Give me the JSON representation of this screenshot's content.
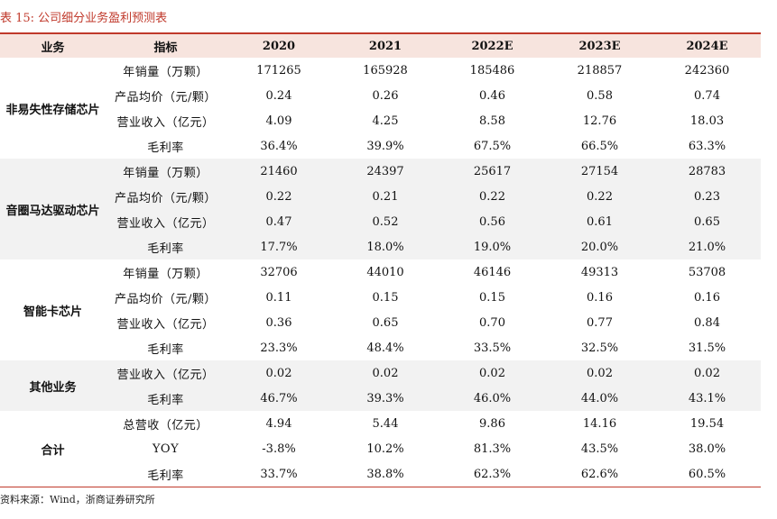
{
  "caption": "表 15:  公司细分业务盈利预测表",
  "header": {
    "business": "业务",
    "indicator": "指标",
    "years": [
      "2020",
      "2021",
      "2022E",
      "2023E",
      "2024E"
    ]
  },
  "sections": [
    {
      "name": "非易失性存储芯片",
      "rows": [
        {
          "indicator": "年销量（万颗）",
          "values": [
            "171265",
            "165928",
            "185486",
            "218857",
            "242360"
          ]
        },
        {
          "indicator": "产品均价（元/颗）",
          "values": [
            "0.24",
            "0.26",
            "0.46",
            "0.58",
            "0.74"
          ]
        },
        {
          "indicator": "营业收入（亿元）",
          "values": [
            "4.09",
            "4.25",
            "8.58",
            "12.76",
            "18.03"
          ]
        },
        {
          "indicator": "毛利率",
          "values": [
            "36.4%",
            "39.9%",
            "67.5%",
            "66.5%",
            "63.3%"
          ]
        }
      ]
    },
    {
      "name": "音圈马达驱动芯片",
      "rows": [
        {
          "indicator": "年销量（万颗）",
          "values": [
            "21460",
            "24397",
            "25617",
            "27154",
            "28783"
          ]
        },
        {
          "indicator": "产品均价（元/颗）",
          "values": [
            "0.22",
            "0.21",
            "0.22",
            "0.22",
            "0.23"
          ]
        },
        {
          "indicator": "营业收入（亿元）",
          "values": [
            "0.47",
            "0.52",
            "0.56",
            "0.61",
            "0.65"
          ]
        },
        {
          "indicator": "毛利率",
          "values": [
            "17.7%",
            "18.0%",
            "19.0%",
            "20.0%",
            "21.0%"
          ]
        }
      ]
    },
    {
      "name": "智能卡芯片",
      "rows": [
        {
          "indicator": "年销量（万颗）",
          "values": [
            "32706",
            "44010",
            "46146",
            "49313",
            "53708"
          ]
        },
        {
          "indicator": "产品均价（元/颗）",
          "values": [
            "0.11",
            "0.15",
            "0.15",
            "0.16",
            "0.16"
          ]
        },
        {
          "indicator": "营业收入（亿元）",
          "values": [
            "0.36",
            "0.65",
            "0.70",
            "0.77",
            "0.84"
          ]
        },
        {
          "indicator": "毛利率",
          "values": [
            "23.3%",
            "48.4%",
            "33.5%",
            "32.5%",
            "31.5%"
          ]
        }
      ]
    },
    {
      "name": "其他业务",
      "rows": [
        {
          "indicator": "营业收入（亿元）",
          "values": [
            "0.02",
            "0.02",
            "0.02",
            "0.02",
            "0.02"
          ]
        },
        {
          "indicator": "毛利率",
          "values": [
            "46.7%",
            "39.3%",
            "46.0%",
            "44.0%",
            "43.1%"
          ]
        }
      ]
    },
    {
      "name": "合计",
      "rows": [
        {
          "indicator": "总营收（亿元）",
          "values": [
            "4.94",
            "5.44",
            "9.86",
            "14.16",
            "19.54"
          ]
        },
        {
          "indicator": "YOY",
          "values": [
            "-3.8%",
            "10.2%",
            "81.3%",
            "43.5%",
            "38.0%"
          ]
        },
        {
          "indicator": "毛利率",
          "values": [
            "33.7%",
            "38.8%",
            "62.3%",
            "62.6%",
            "60.5%"
          ]
        }
      ]
    }
  ],
  "source": "资料来源：Wind，浙商证券研究所",
  "colors": {
    "accent": "#c0392b",
    "header_bg": "#f7e4de",
    "shade_bg": "#f2f2f2"
  }
}
